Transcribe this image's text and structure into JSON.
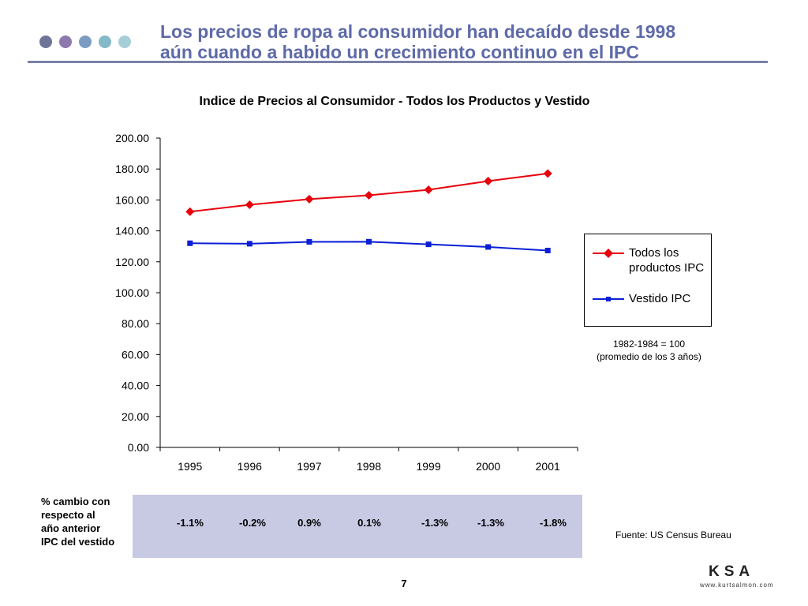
{
  "header": {
    "title_line1": "Los precios de ropa al consumidor han decaído desde 1998",
    "title_line2": "aún cuando a habido un crecimiento continuo en el IPC",
    "dot_colors": [
      "#6f7597",
      "#8d79ad",
      "#7a9cc3",
      "#84b9c7",
      "#a6ced6"
    ]
  },
  "chart_data": {
    "type": "line",
    "title": "Indice de Precios al Consumidor - Todos los Productos y Vestido",
    "categories": [
      "1995",
      "1996",
      "1997",
      "1998",
      "1999",
      "2000",
      "2001"
    ],
    "ylim": [
      0,
      200
    ],
    "yticks": [
      "0.00",
      "20.00",
      "40.00",
      "60.00",
      "80.00",
      "100.00",
      "120.00",
      "140.00",
      "160.00",
      "180.00",
      "200.00"
    ],
    "xlabel": "",
    "ylabel": "",
    "grid": false,
    "legend_position": "right",
    "series": [
      {
        "name": "Todos los productos IPC",
        "values": [
          152.4,
          156.9,
          160.5,
          163.0,
          166.6,
          172.2,
          177.1
        ],
        "color": "#e8000b",
        "marker": "diamond"
      },
      {
        "name": "Vestido IPC",
        "values": [
          132.0,
          131.7,
          132.9,
          133.0,
          131.3,
          129.6,
          127.3
        ],
        "color": "#0a1fd6",
        "marker": "square"
      }
    ]
  },
  "legend": {
    "item1_line1": "Todos los",
    "item1_line2": "productos IPC",
    "item2": "Vestido IPC"
  },
  "base_note": {
    "line1": "1982-1984 = 100",
    "line2": "(promedio de los 3 años)"
  },
  "pct_change": {
    "label_lines": [
      "% cambio con",
      "respecto al",
      "año anterior",
      "IPC del vestido"
    ],
    "values": [
      "-1.1%",
      "-0.2%",
      "0.9%",
      "0.1%",
      "-1.3%",
      "-1.3%",
      "-1.8%"
    ]
  },
  "source": "Fuente:  US Census Bureau",
  "page_number": "7",
  "logo": {
    "text": "KSA",
    "url": "www.kurtsalmon.com"
  }
}
